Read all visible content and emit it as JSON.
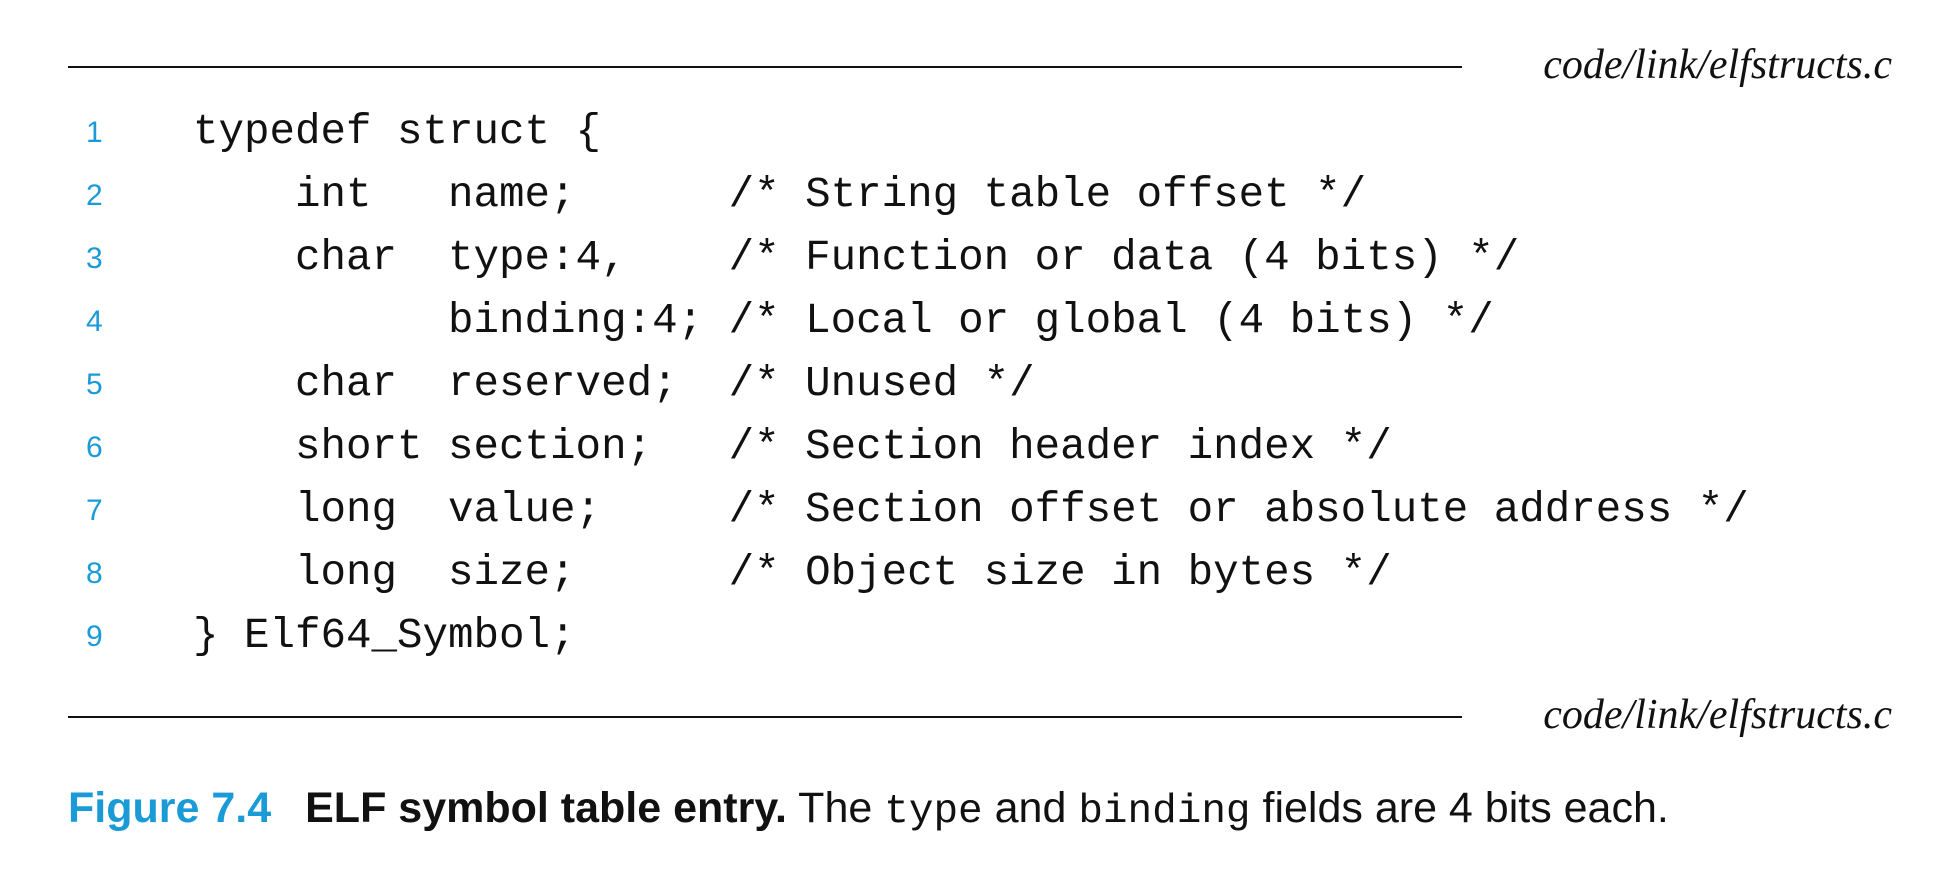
{
  "header": {
    "file_path": "code/link/elfstructs.c"
  },
  "footer": {
    "file_path": "code/link/elfstructs.c"
  },
  "code": {
    "lines": [
      {
        "number": "1",
        "text": "typedef struct {"
      },
      {
        "number": "2",
        "text": "    int   name;      /* String table offset */"
      },
      {
        "number": "3",
        "text": "    char  type:4,    /* Function or data (4 bits) */"
      },
      {
        "number": "4",
        "text": "          binding:4; /* Local or global (4 bits) */"
      },
      {
        "number": "5",
        "text": "    char  reserved;  /* Unused */"
      },
      {
        "number": "6",
        "text": "    short section;   /* Section header index */"
      },
      {
        "number": "7",
        "text": "    long  value;     /* Section offset or absolute address */"
      },
      {
        "number": "8",
        "text": "    long  size;      /* Object size in bytes */"
      },
      {
        "number": "9",
        "text": "} Elf64_Symbol;"
      }
    ]
  },
  "caption": {
    "figure_number": "Figure 7.4",
    "title": "ELF symbol table entry.",
    "text_1": "The",
    "code_1": "type",
    "text_2": "and",
    "code_2": "binding",
    "text_3": "fields are 4 bits each."
  },
  "colors": {
    "accent": "#1a9bd7",
    "text": "#111111"
  }
}
